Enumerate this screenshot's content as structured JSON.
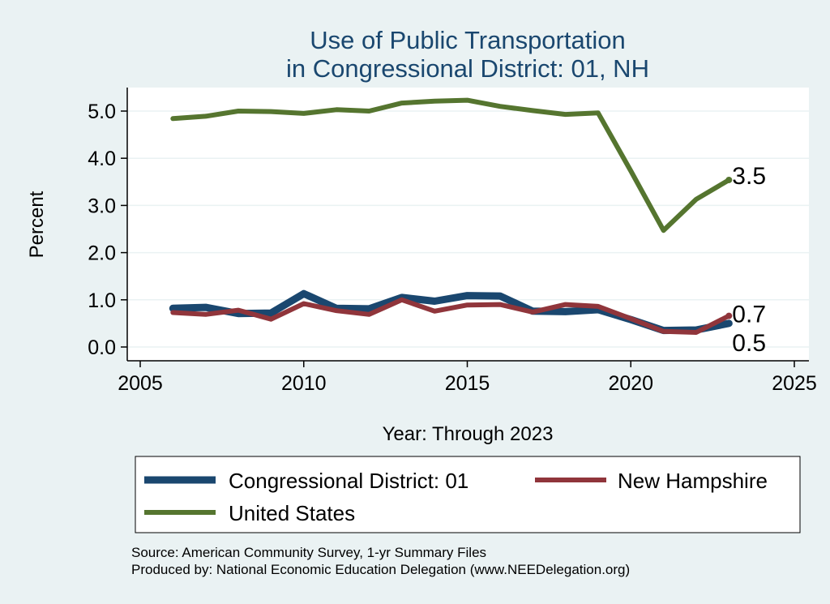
{
  "chart_data": {
    "type": "line",
    "title": [
      "Use of Public Transportation",
      "in Congressional District: 01, NH"
    ],
    "xlabel": "Year: Through 2023",
    "ylabel": "Percent",
    "xlim": [
      2005,
      2025
    ],
    "ylim": [
      0,
      5.5
    ],
    "x_ticks": [
      2005,
      2010,
      2015,
      2020,
      2025
    ],
    "y_ticks": [
      0.0,
      1.0,
      2.0,
      3.0,
      4.0,
      5.0
    ],
    "y_tick_labels": [
      "0.0",
      "1.0",
      "2.0",
      "3.0",
      "4.0",
      "5.0"
    ],
    "grid": true,
    "legend_position": "bottom",
    "x": [
      2006,
      2007,
      2008,
      2009,
      2010,
      2011,
      2012,
      2013,
      2014,
      2015,
      2016,
      2017,
      2018,
      2019,
      2020,
      2021,
      2022,
      2023
    ],
    "series": [
      {
        "name": "Congressional District: 01",
        "color": "#1a476f",
        "values": [
          0.82,
          0.84,
          0.71,
          0.72,
          1.13,
          0.82,
          0.81,
          1.05,
          0.97,
          1.09,
          1.08,
          0.76,
          0.75,
          0.79,
          0.58,
          0.35,
          0.36,
          0.5
        ],
        "end_label": "0.5"
      },
      {
        "name": "New Hampshire",
        "color": "#90353b",
        "values": [
          0.73,
          0.69,
          0.78,
          0.59,
          0.92,
          0.77,
          0.69,
          1.0,
          0.76,
          0.89,
          0.9,
          0.74,
          0.9,
          0.86,
          0.6,
          0.33,
          0.31,
          0.66
        ],
        "end_label": "0.7"
      },
      {
        "name": "United States",
        "color": "#55752f",
        "values": [
          4.84,
          4.89,
          5.0,
          4.99,
          4.95,
          5.03,
          5.0,
          5.17,
          5.21,
          5.23,
          5.1,
          5.01,
          4.93,
          4.96,
          3.73,
          2.47,
          3.13,
          3.54
        ],
        "end_label": "3.5"
      }
    ],
    "notes": [
      "Source: American Community Survey, 1-yr Summary Files",
      "Produced by: National Economic Education Delegation (www.NEEDelegation.org)"
    ]
  }
}
